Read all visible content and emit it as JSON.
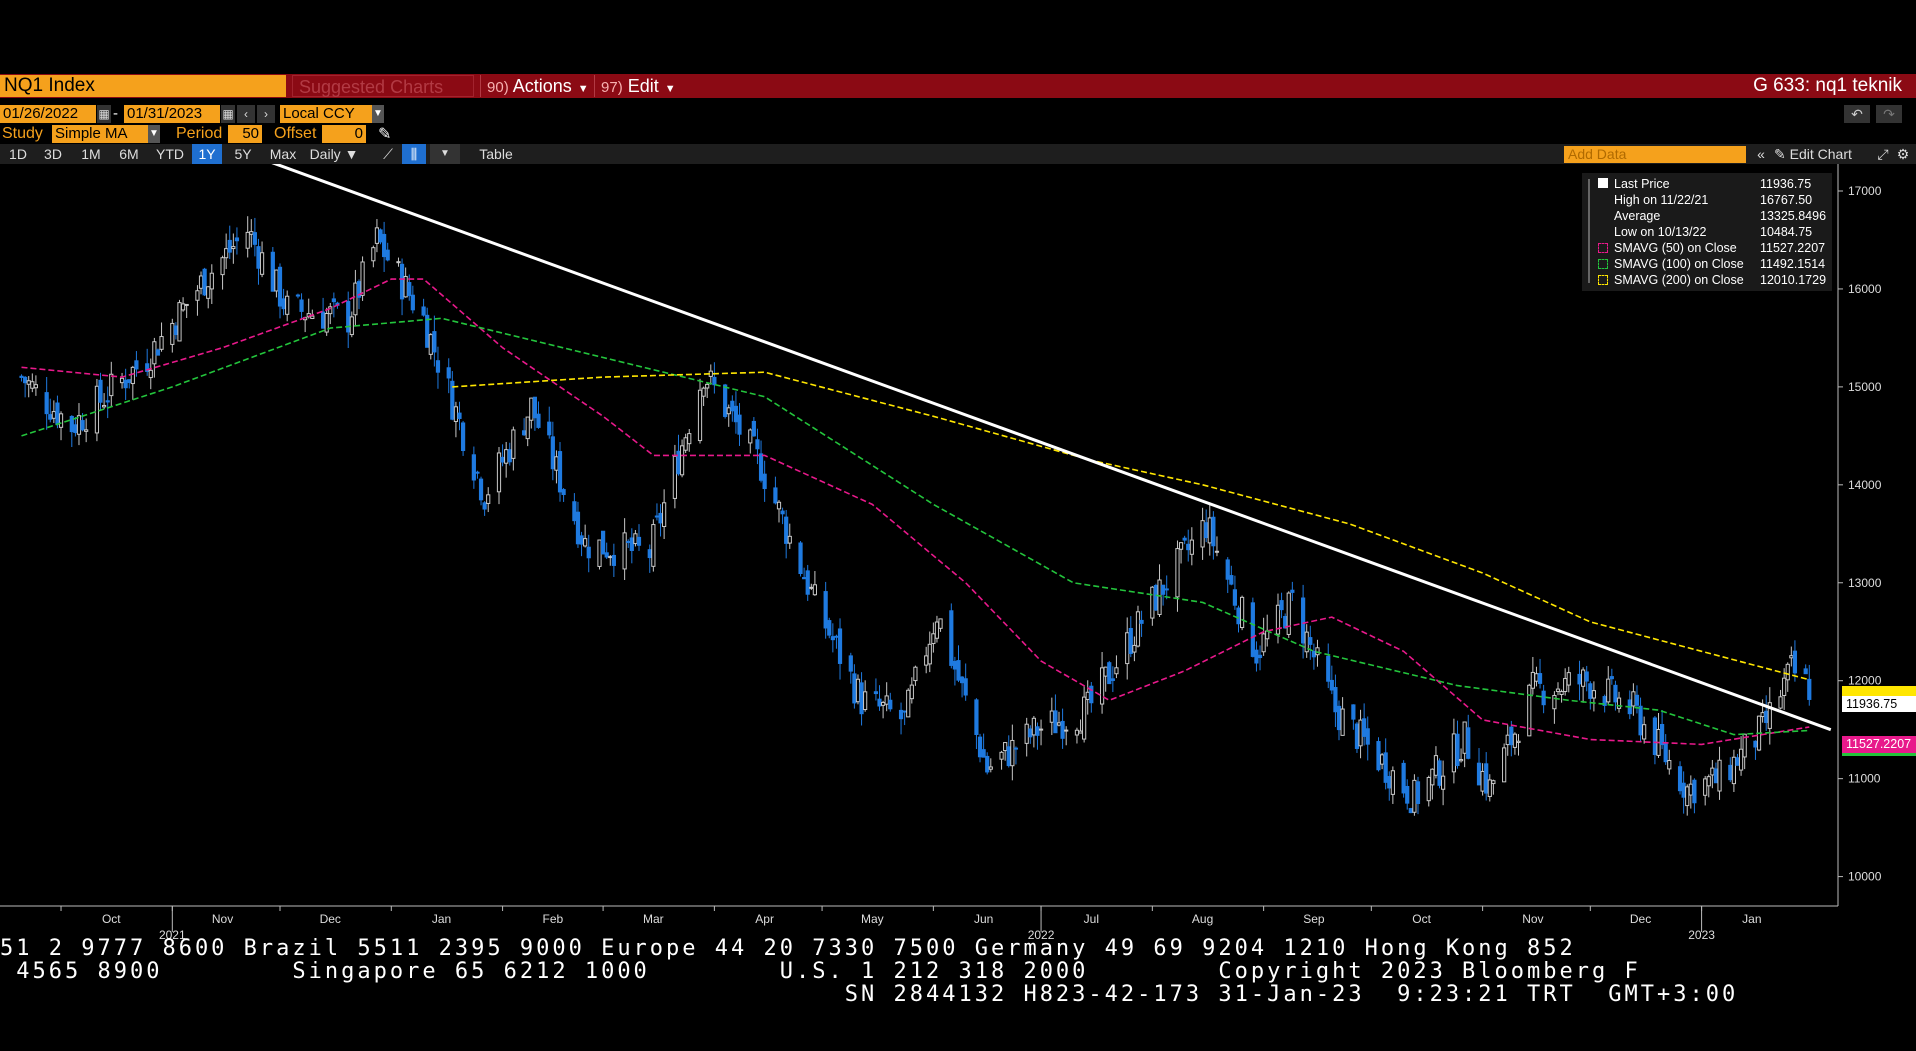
{
  "header": {
    "ticker": "NQ1 Index",
    "suggested": "Suggested Charts",
    "actions_num": "90",
    "actions_label": "Actions",
    "edit_num": "97",
    "edit_label": "Edit",
    "title_right": "G 633: nq1 teknik"
  },
  "controls": {
    "start_date": "01/26/2022",
    "end_date": "01/31/2023",
    "date_sep": "-",
    "currency": "Local CCY",
    "study_label": "Study",
    "study_value": "Simple MA",
    "period_label": "Period",
    "period_value": "50",
    "offset_label": "Offset",
    "offset_value": "0"
  },
  "toolbar": {
    "ranges": [
      "1D",
      "3D",
      "1M",
      "6M",
      "YTD",
      "1Y",
      "5Y",
      "Max"
    ],
    "active_range": "1Y",
    "frequency": "Daily",
    "table_label": "Table",
    "add_data_placeholder": "Add Data",
    "edit_chart": "Edit Chart"
  },
  "legend": {
    "rows": [
      {
        "label": "Last Price",
        "value": "11936.75",
        "color": "#ffffff"
      },
      {
        "label": "High on 11/22/21",
        "value": "16767.50",
        "color": "#ffffff"
      },
      {
        "label": "Average",
        "value": "13325.8496",
        "color": "#ffffff"
      },
      {
        "label": "Low on 10/13/22",
        "value": "10484.75",
        "color": "#ffffff"
      },
      {
        "label": "SMAVG (50)  on Close",
        "value": "11527.2207",
        "color": "#e8198b"
      },
      {
        "label": "SMAVG (100)  on Close",
        "value": "11492.1514",
        "color": "#23c43c"
      },
      {
        "label": "SMAVG (200)  on Close",
        "value": "12010.1729",
        "color": "#ffe600"
      }
    ]
  },
  "price_tags": {
    "last": "11936.75",
    "sma50": "11527.2207"
  },
  "chart_data": {
    "type": "candlestick",
    "ylim": [
      10000,
      17000
    ],
    "y_ticks": [
      "17000",
      "16000",
      "15000",
      "14000",
      "13000",
      "12000",
      "11000",
      "10000"
    ],
    "x_ticks": [
      "Oct",
      "Nov",
      "Dec",
      "Jan",
      "Feb",
      "Mar",
      "Apr",
      "May",
      "Jun",
      "Jul",
      "Aug",
      "Sep",
      "Oct",
      "Nov",
      "Dec",
      "Jan"
    ],
    "year_labels": [
      "2021",
      "2022",
      "2023"
    ],
    "price_path": [
      [
        "2021-09-20",
        15100
      ],
      [
        "2021-10-04",
        14600
      ],
      [
        "2021-10-25",
        15300
      ],
      [
        "2021-11-10",
        16100
      ],
      [
        "2021-11-22",
        16600
      ],
      [
        "2021-12-03",
        15800
      ],
      [
        "2021-12-20",
        15700
      ],
      [
        "2021-12-28",
        16500
      ],
      [
        "2022-01-10",
        15700
      ],
      [
        "2022-01-27",
        13900
      ],
      [
        "2022-02-09",
        14800
      ],
      [
        "2022-02-24",
        13400
      ],
      [
        "2022-03-14",
        13300
      ],
      [
        "2022-03-29",
        15150
      ],
      [
        "2022-04-14",
        14200
      ],
      [
        "2022-04-29",
        12800
      ],
      [
        "2022-05-12",
        11800
      ],
      [
        "2022-05-24",
        11600
      ],
      [
        "2022-06-02",
        12700
      ],
      [
        "2022-06-16",
        11100
      ],
      [
        "2022-06-30",
        11500
      ],
      [
        "2022-07-14",
        11700
      ],
      [
        "2022-08-01",
        12800
      ],
      [
        "2022-08-16",
        13600
      ],
      [
        "2022-08-30",
        12300
      ],
      [
        "2022-09-09",
        12800
      ],
      [
        "2022-09-21",
        11700
      ],
      [
        "2022-10-13",
        10800
      ],
      [
        "2022-10-27",
        11400
      ],
      [
        "2022-11-03",
        10900
      ],
      [
        "2022-11-15",
        11900
      ],
      [
        "2022-11-30",
        12000
      ],
      [
        "2022-12-13",
        11700
      ],
      [
        "2022-12-28",
        10900
      ],
      [
        "2023-01-06",
        11000
      ],
      [
        "2023-01-18",
        11500
      ],
      [
        "2023-01-26",
        12100
      ],
      [
        "2023-01-31",
        11936.75
      ]
    ],
    "series": [
      {
        "name": "SMAVG (50)",
        "color": "#e8198b",
        "points": [
          [
            "2021-09-20",
            15200
          ],
          [
            "2021-10-18",
            15100
          ],
          [
            "2021-11-15",
            15400
          ],
          [
            "2021-12-15",
            15800
          ],
          [
            "2022-01-01",
            16100
          ],
          [
            "2022-01-10",
            16100
          ],
          [
            "2022-02-01",
            15400
          ],
          [
            "2022-03-01",
            14700
          ],
          [
            "2022-03-15",
            14300
          ],
          [
            "2022-04-15",
            14300
          ],
          [
            "2022-05-15",
            13800
          ],
          [
            "2022-06-10",
            13000
          ],
          [
            "2022-07-01",
            12200
          ],
          [
            "2022-07-20",
            11800
          ],
          [
            "2022-08-10",
            12100
          ],
          [
            "2022-09-01",
            12500
          ],
          [
            "2022-09-20",
            12650
          ],
          [
            "2022-10-10",
            12300
          ],
          [
            "2022-11-01",
            11600
          ],
          [
            "2022-12-01",
            11400
          ],
          [
            "2023-01-01",
            11350
          ],
          [
            "2023-01-31",
            11527.2207
          ]
        ]
      },
      {
        "name": "SMAVG (100)",
        "color": "#23c43c",
        "points": [
          [
            "2021-09-20",
            14500
          ],
          [
            "2021-11-01",
            15000
          ],
          [
            "2021-12-15",
            15600
          ],
          [
            "2022-01-15",
            15700
          ],
          [
            "2022-03-01",
            15300
          ],
          [
            "2022-04-15",
            14900
          ],
          [
            "2022-06-01",
            13800
          ],
          [
            "2022-07-10",
            13000
          ],
          [
            "2022-08-15",
            12800
          ],
          [
            "2022-09-15",
            12300
          ],
          [
            "2022-10-25",
            11950
          ],
          [
            "2022-11-25",
            11800
          ],
          [
            "2022-12-20",
            11700
          ],
          [
            "2023-01-10",
            11450
          ],
          [
            "2023-01-31",
            11492.1514
          ]
        ]
      },
      {
        "name": "SMAVG (200)",
        "color": "#ffe600",
        "points": [
          [
            "2022-01-18",
            15000
          ],
          [
            "2022-03-01",
            15100
          ],
          [
            "2022-04-15",
            15150
          ],
          [
            "2022-06-01",
            14700
          ],
          [
            "2022-07-15",
            14250
          ],
          [
            "2022-08-15",
            14000
          ],
          [
            "2022-09-25",
            13600
          ],
          [
            "2022-11-01",
            13100
          ],
          [
            "2022-12-01",
            12600
          ],
          [
            "2023-01-01",
            12300
          ],
          [
            "2023-01-31",
            12010.1729
          ]
        ]
      },
      {
        "name": "trendline",
        "color": "#ffffff",
        "points": [
          [
            "2021-11-28",
            17300
          ],
          [
            "2023-02-06",
            11500
          ]
        ]
      }
    ]
  },
  "footer": {
    "line1": "51 2 9777 8600 Brazil 5511 2395 9000 Europe 44 20 7330 7500 Germany 49 69 9204 1210 Hong Kong 852",
    "line2": " 4565 8900        Singapore 65 6212 1000        U.S. 1 212 318 2000        Copyright 2023 Bloomberg F",
    "line3": "                                                    SN 2844132 H823-42-173 31-Jan-23  9:23:21 TRT  GMT+3:00"
  }
}
